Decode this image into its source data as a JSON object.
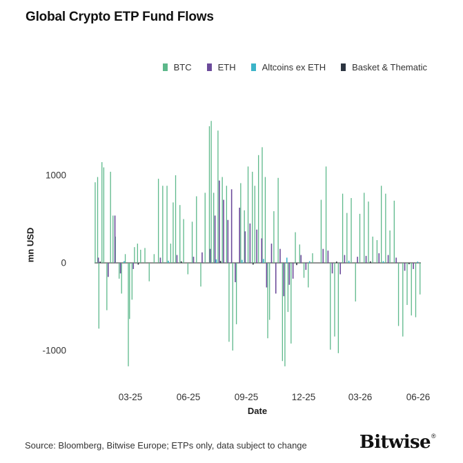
{
  "header": {
    "title": "Global Crypto ETP Fund Flows"
  },
  "footer": {
    "source": "Source: Bloomberg, Bitwise Europe; ETPs only, data subject to change",
    "brand": "Bitwise",
    "brand_mark": "®"
  },
  "chart_data": {
    "type": "bar",
    "title": "Global Crypto ETP Fund Flows",
    "xlabel": "Date",
    "ylabel": "mn USD",
    "ylim": [
      -1300,
      1700
    ],
    "y_ticks": [
      {
        "value": 1000,
        "label": "1000"
      },
      {
        "value": 0,
        "label": "0"
      },
      {
        "value": -1000,
        "label": "-1000"
      }
    ],
    "x_range": [
      "2025-01-01",
      "2026-06-30"
    ],
    "x_ticks": [
      {
        "date": "2025-03-01",
        "label": "03-25"
      },
      {
        "date": "2025-06-01",
        "label": "06-25"
      },
      {
        "date": "2025-09-01",
        "label": "09-25"
      },
      {
        "date": "2025-12-01",
        "label": "12-25"
      },
      {
        "date": "2026-03-01",
        "label": "03-26"
      },
      {
        "date": "2026-06-01",
        "label": "06-26"
      }
    ],
    "grid": false,
    "legend_position": "top-right",
    "series": [
      {
        "name": "BTC",
        "color": "#5cb88a",
        "points": [
          [
            "2025-01-02",
            920
          ],
          [
            "2025-01-06",
            980
          ],
          [
            "2025-01-08",
            -750
          ],
          [
            "2025-01-13",
            1150
          ],
          [
            "2025-01-16",
            1090
          ],
          [
            "2025-01-21",
            -540
          ],
          [
            "2025-01-27",
            1040
          ],
          [
            "2025-01-31",
            540
          ],
          [
            "2025-02-04",
            300
          ],
          [
            "2025-02-10",
            -180
          ],
          [
            "2025-02-14",
            -350
          ],
          [
            "2025-02-20",
            100
          ],
          [
            "2025-02-25",
            -1180
          ],
          [
            "2025-02-27",
            -640
          ],
          [
            "2025-03-03",
            -420
          ],
          [
            "2025-03-07",
            180
          ],
          [
            "2025-03-12",
            220
          ],
          [
            "2025-03-17",
            150
          ],
          [
            "2025-03-24",
            170
          ],
          [
            "2025-03-31",
            -210
          ],
          [
            "2025-04-08",
            100
          ],
          [
            "2025-04-15",
            960
          ],
          [
            "2025-04-22",
            880
          ],
          [
            "2025-04-29",
            880
          ],
          [
            "2025-05-05",
            220
          ],
          [
            "2025-05-09",
            690
          ],
          [
            "2025-05-13",
            1000
          ],
          [
            "2025-05-20",
            660
          ],
          [
            "2025-05-26",
            500
          ],
          [
            "2025-06-02",
            -130
          ],
          [
            "2025-06-09",
            470
          ],
          [
            "2025-06-16",
            760
          ],
          [
            "2025-06-23",
            -270
          ],
          [
            "2025-06-30",
            800
          ],
          [
            "2025-07-07",
            1560
          ],
          [
            "2025-07-10",
            1620
          ],
          [
            "2025-07-14",
            800
          ],
          [
            "2025-07-21",
            1510
          ],
          [
            "2025-07-28",
            980
          ],
          [
            "2025-08-04",
            880
          ],
          [
            "2025-08-08",
            -900
          ],
          [
            "2025-08-14",
            -1000
          ],
          [
            "2025-08-20",
            -700
          ],
          [
            "2025-08-27",
            910
          ],
          [
            "2025-09-02",
            600
          ],
          [
            "2025-09-08",
            1100
          ],
          [
            "2025-09-15",
            1040
          ],
          [
            "2025-09-19",
            880
          ],
          [
            "2025-09-25",
            1230
          ],
          [
            "2025-10-01",
            1320
          ],
          [
            "2025-10-06",
            980
          ],
          [
            "2025-10-10",
            -860
          ],
          [
            "2025-10-13",
            -650
          ],
          [
            "2025-10-20",
            590
          ],
          [
            "2025-10-27",
            970
          ],
          [
            "2025-11-03",
            -1120
          ],
          [
            "2025-11-07",
            -1180
          ],
          [
            "2025-11-12",
            -560
          ],
          [
            "2025-11-17",
            -920
          ],
          [
            "2025-11-24",
            350
          ],
          [
            "2025-12-01",
            210
          ],
          [
            "2025-12-08",
            -170
          ],
          [
            "2025-12-15",
            -280
          ],
          [
            "2025-12-22",
            110
          ],
          [
            "2026-01-05",
            720
          ],
          [
            "2026-01-13",
            1100
          ],
          [
            "2026-01-20",
            -990
          ],
          [
            "2026-01-27",
            -840
          ],
          [
            "2026-02-02",
            -1030
          ],
          [
            "2026-02-09",
            790
          ],
          [
            "2026-02-16",
            570
          ],
          [
            "2026-02-23",
            740
          ],
          [
            "2026-03-02",
            -440
          ],
          [
            "2026-03-09",
            560
          ],
          [
            "2026-03-16",
            800
          ],
          [
            "2026-03-23",
            700
          ],
          [
            "2026-03-30",
            300
          ],
          [
            "2026-04-06",
            260
          ],
          [
            "2026-04-13",
            880
          ],
          [
            "2026-04-20",
            790
          ],
          [
            "2026-04-27",
            370
          ],
          [
            "2026-05-04",
            710
          ],
          [
            "2026-05-11",
            -720
          ],
          [
            "2026-05-18",
            -840
          ],
          [
            "2026-05-25",
            -480
          ],
          [
            "2026-06-01",
            -600
          ],
          [
            "2026-06-08",
            -620
          ],
          [
            "2026-06-15",
            -360
          ]
        ]
      },
      {
        "name": "ETH",
        "color": "#6b4a9a",
        "points": [
          [
            "2025-01-07",
            60
          ],
          [
            "2025-01-23",
            -160
          ],
          [
            "2025-02-03",
            540
          ],
          [
            "2025-02-12",
            -120
          ],
          [
            "2025-03-05",
            -70
          ],
          [
            "2025-04-18",
            60
          ],
          [
            "2025-05-15",
            90
          ],
          [
            "2025-06-11",
            70
          ],
          [
            "2025-06-25",
            120
          ],
          [
            "2025-07-08",
            160
          ],
          [
            "2025-07-16",
            540
          ],
          [
            "2025-07-23",
            940
          ],
          [
            "2025-07-30",
            720
          ],
          [
            "2025-08-06",
            490
          ],
          [
            "2025-08-12",
            840
          ],
          [
            "2025-08-18",
            -220
          ],
          [
            "2025-08-25",
            630
          ],
          [
            "2025-09-03",
            360
          ],
          [
            "2025-09-11",
            450
          ],
          [
            "2025-09-22",
            380
          ],
          [
            "2025-09-30",
            280
          ],
          [
            "2025-10-08",
            -280
          ],
          [
            "2025-10-16",
            220
          ],
          [
            "2025-10-23",
            -350
          ],
          [
            "2025-10-30",
            160
          ],
          [
            "2025-11-05",
            -380
          ],
          [
            "2025-11-14",
            -250
          ],
          [
            "2025-11-20",
            -180
          ],
          [
            "2025-12-03",
            90
          ],
          [
            "2025-12-11",
            -80
          ],
          [
            "2026-01-08",
            160
          ],
          [
            "2026-01-16",
            140
          ],
          [
            "2026-01-23",
            -120
          ],
          [
            "2026-02-05",
            -130
          ],
          [
            "2026-02-12",
            90
          ],
          [
            "2026-03-05",
            70
          ],
          [
            "2026-03-19",
            80
          ],
          [
            "2026-04-09",
            110
          ],
          [
            "2026-04-24",
            90
          ],
          [
            "2026-05-07",
            60
          ],
          [
            "2026-05-21",
            -90
          ],
          [
            "2026-06-04",
            -70
          ]
        ]
      },
      {
        "name": "Altcoins ex ETH",
        "color": "#3bb4c8",
        "points": [
          [
            "2025-02-18",
            20
          ],
          [
            "2025-05-01",
            25
          ],
          [
            "2025-07-18",
            40
          ],
          [
            "2025-08-29",
            35
          ],
          [
            "2025-10-03",
            45
          ],
          [
            "2025-11-10",
            60
          ],
          [
            "2025-12-17",
            20
          ],
          [
            "2026-02-19",
            25
          ],
          [
            "2026-04-16",
            20
          ],
          [
            "2026-06-11",
            15
          ]
        ]
      },
      {
        "name": "Basket & Thematic",
        "color": "#2b3440",
        "points": [
          [
            "2025-01-10",
            15
          ],
          [
            "2025-03-13",
            -20
          ],
          [
            "2025-05-22",
            18
          ],
          [
            "2025-07-25",
            22
          ],
          [
            "2025-09-16",
            -20
          ],
          [
            "2025-11-26",
            -25
          ],
          [
            "2026-01-30",
            15
          ],
          [
            "2026-03-26",
            18
          ],
          [
            "2026-05-28",
            -15
          ]
        ]
      }
    ]
  }
}
